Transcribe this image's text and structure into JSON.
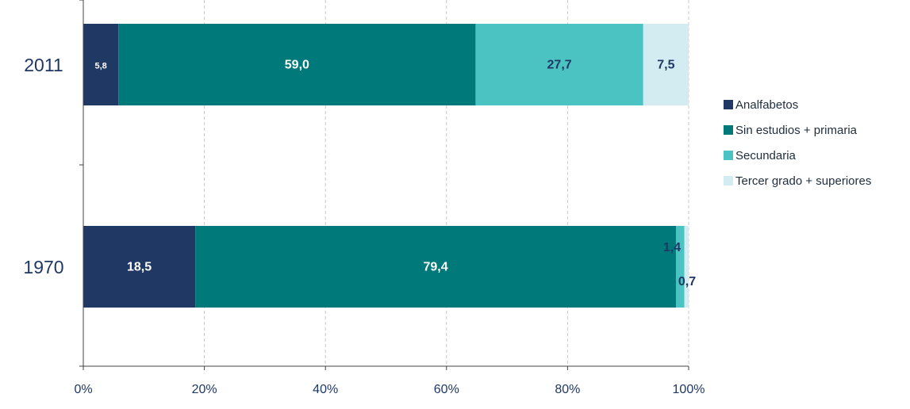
{
  "chart_data": {
    "type": "bar",
    "orientation": "horizontal",
    "stacked": true,
    "percent_stacked": true,
    "categories": [
      "2011",
      "1970"
    ],
    "series": [
      {
        "name": "Analfabetos",
        "values": [
          5.8,
          18.5
        ],
        "labels": [
          "5,8",
          "18,5"
        ],
        "color": "#1f3864"
      },
      {
        "name": "Sin estudios + primaria",
        "values": [
          59.0,
          79.4
        ],
        "labels": [
          "59,0",
          "79,4"
        ],
        "color": "#00797a"
      },
      {
        "name": "Secundaria",
        "values": [
          27.7,
          1.4
        ],
        "labels": [
          "27,7",
          "1,4"
        ],
        "color": "#4bc3c3"
      },
      {
        "name": "Tercer grado + superiores",
        "values": [
          7.5,
          0.7
        ],
        "labels": [
          "7,5",
          "0,7"
        ],
        "color": "#d3ecf1"
      }
    ],
    "x_ticks": [
      "0%",
      "20%",
      "40%",
      "60%",
      "80%",
      "100%"
    ],
    "xlim": [
      0,
      100
    ],
    "grid": "vertical dashed",
    "legend_position": "right"
  }
}
